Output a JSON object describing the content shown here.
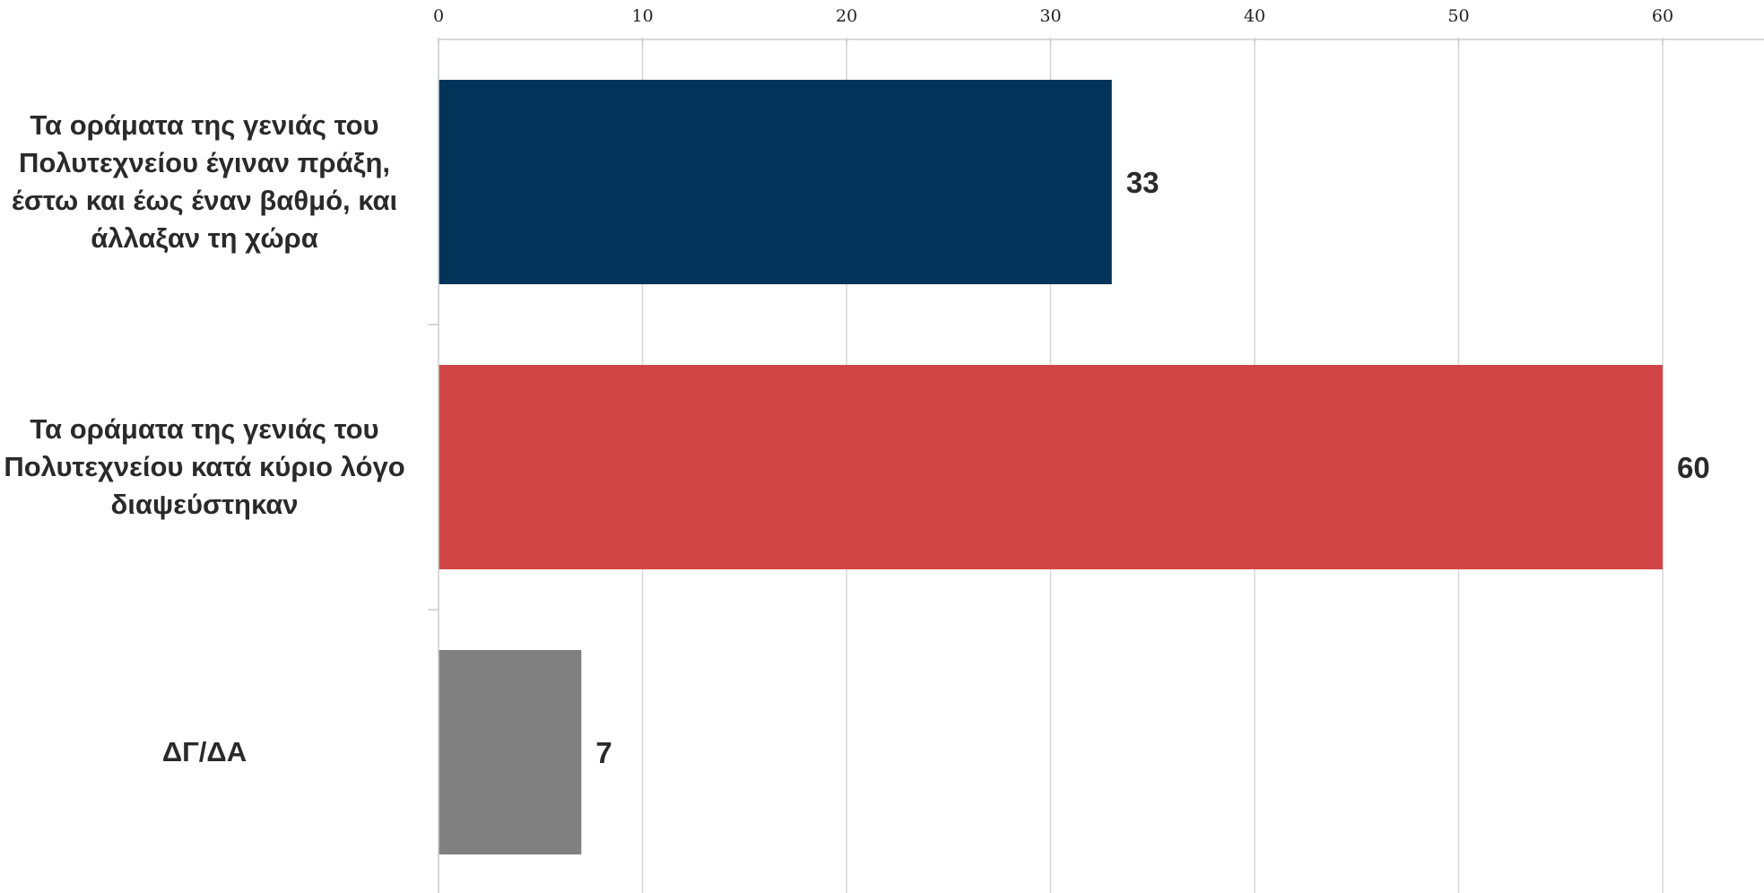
{
  "chart_data": {
    "type": "bar",
    "orientation": "horizontal",
    "title": "",
    "xlabel": "",
    "ylabel": "",
    "xlim": [
      0,
      65
    ],
    "ticks": [
      0,
      10,
      20,
      30,
      40,
      50,
      60
    ],
    "grid": true,
    "legend": "none",
    "categories": [
      {
        "label": "Τα οράματα της γενιάς του Πολυτεχνείου έγιναν πράξη, έστω και έως έναν βαθμό, και άλλαξαν τη χώρα",
        "lines": [
          "Τα οράματα της γενιάς του",
          "Πολυτεχνείου έγιναν πράξη,",
          "έστω και έως έναν βαθμό, και",
          "άλλαξαν τη χώρα"
        ],
        "value": 33,
        "value_label": "33",
        "color": "#023459"
      },
      {
        "label": "Τα οράματα της γενιάς του Πολυτεχνείου κατά κύριο λόγο διαψεύστηκαν",
        "lines": [
          "Τα οράματα της γενιάς του",
          "Πολυτεχνείου κατά κύριο λόγο",
          "διαψεύστηκαν"
        ],
        "value": 60,
        "value_label": "60",
        "color": "#cf4243"
      },
      {
        "label": "ΔΓ/ΔΑ",
        "lines": [
          "ΔΓ/ΔΑ"
        ],
        "value": 7,
        "value_label": "7",
        "color": "#808080"
      }
    ]
  }
}
